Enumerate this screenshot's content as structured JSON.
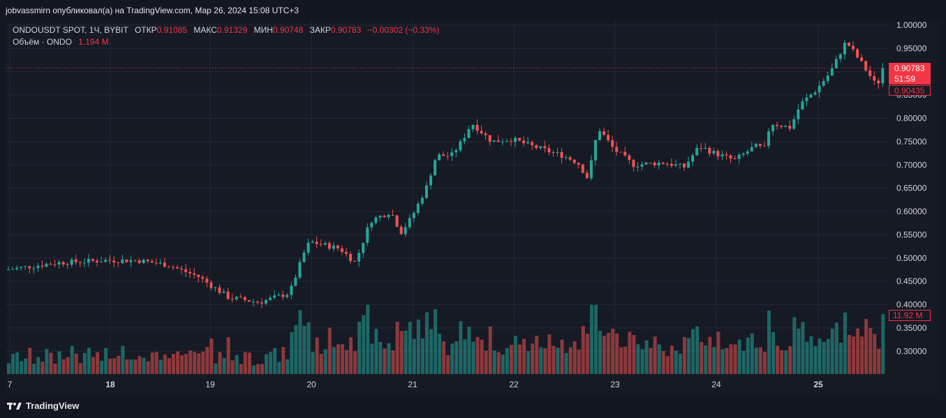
{
  "attribution": "jobvassmirn опубликовал(а) на TradingView.com, Мар 26, 2024 15:08 UTC+3",
  "legend": {
    "symbol": "ONDOUSDT SPOT, 1Ч, BYBIT",
    "open_label": "ОТКР",
    "open": "0.91085",
    "high_label": "МАКС",
    "high": "0.91329",
    "low_label": "МИН",
    "low": "0.90748",
    "close_label": "ЗАКР",
    "close": "0.90783",
    "change": "−0.00302 (−0.33%)",
    "volume_label": "Объём · ONDO",
    "volume": "1.194 M"
  },
  "price_badge": {
    "price": "0.90783",
    "countdown": "51:59",
    "secondary": "0.90435",
    "volume_tag": "11.92 M"
  },
  "logo_text": "TradingView",
  "colors": {
    "up": "#26a69a",
    "down": "#ef5350",
    "background": "#161a25",
    "grid": "#242836",
    "badge": "#f23645"
  },
  "chart_data": {
    "type": "candlestick",
    "interval": "1h",
    "y_ticks": [
      "1.00000",
      "0.95000",
      "0.90000",
      "0.85000",
      "0.80000",
      "0.75000",
      "0.70000",
      "0.65000",
      "0.60000",
      "0.55000",
      "0.50000",
      "0.45000",
      "0.40000",
      "0.35000",
      "0.30000"
    ],
    "ylim": [
      0.245,
      1.0
    ],
    "x_ticks": [
      "7",
      "18",
      "19",
      "20",
      "21",
      "22",
      "23",
      "24",
      "25"
    ],
    "price_series": [
      {
        "day": "17",
        "close": 0.475
      },
      {
        "day": "17.5",
        "close": 0.49
      },
      {
        "day": "18",
        "close": 0.495
      },
      {
        "day": "18.3",
        "close": 0.495
      },
      {
        "day": "18.6",
        "close": 0.485
      },
      {
        "day": "18.9",
        "close": 0.46
      },
      {
        "day": "19",
        "close": 0.445
      },
      {
        "day": "19.2",
        "close": 0.415
      },
      {
        "day": "19.5",
        "close": 0.405
      },
      {
        "day": "19.8",
        "close": 0.425
      },
      {
        "day": "19.95",
        "close": 0.515
      },
      {
        "day": "20",
        "close": 0.535
      },
      {
        "day": "20.3",
        "close": 0.52
      },
      {
        "day": "20.45",
        "close": 0.49
      },
      {
        "day": "20.6",
        "close": 0.58
      },
      {
        "day": "20.8",
        "close": 0.6
      },
      {
        "day": "20.9",
        "close": 0.555
      },
      {
        "day": "21",
        "close": 0.585
      },
      {
        "day": "21.15",
        "close": 0.65
      },
      {
        "day": "21.25",
        "close": 0.72
      },
      {
        "day": "21.4",
        "close": 0.72
      },
      {
        "day": "21.5",
        "close": 0.75
      },
      {
        "day": "21.6",
        "close": 0.79
      },
      {
        "day": "21.8",
        "close": 0.75
      },
      {
        "day": "22",
        "close": 0.755
      },
      {
        "day": "22.2",
        "close": 0.74
      },
      {
        "day": "22.5",
        "close": 0.72
      },
      {
        "day": "22.65",
        "close": 0.705
      },
      {
        "day": "22.75",
        "close": 0.67
      },
      {
        "day": "22.85",
        "close": 0.78
      },
      {
        "day": "23",
        "close": 0.735
      },
      {
        "day": "23.2",
        "close": 0.7
      },
      {
        "day": "23.5",
        "close": 0.705
      },
      {
        "day": "23.7",
        "close": 0.695
      },
      {
        "day": "23.85",
        "close": 0.74
      },
      {
        "day": "24",
        "close": 0.725
      },
      {
        "day": "24.2",
        "close": 0.71
      },
      {
        "day": "24.4",
        "close": 0.74
      },
      {
        "day": "24.5",
        "close": 0.735
      },
      {
        "day": "24.55",
        "close": 0.79
      },
      {
        "day": "24.75",
        "close": 0.78
      },
      {
        "day": "24.85",
        "close": 0.83
      },
      {
        "day": "25",
        "close": 0.86
      },
      {
        "day": "25.15",
        "close": 0.9
      },
      {
        "day": "25.3",
        "close": 0.965
      },
      {
        "day": "25.45",
        "close": 0.92
      },
      {
        "day": "25.6",
        "close": 0.87
      },
      {
        "day": "25.7",
        "close": 0.9078
      }
    ],
    "current_price": 0.90783,
    "volume_axis_label": "11.92 M"
  }
}
